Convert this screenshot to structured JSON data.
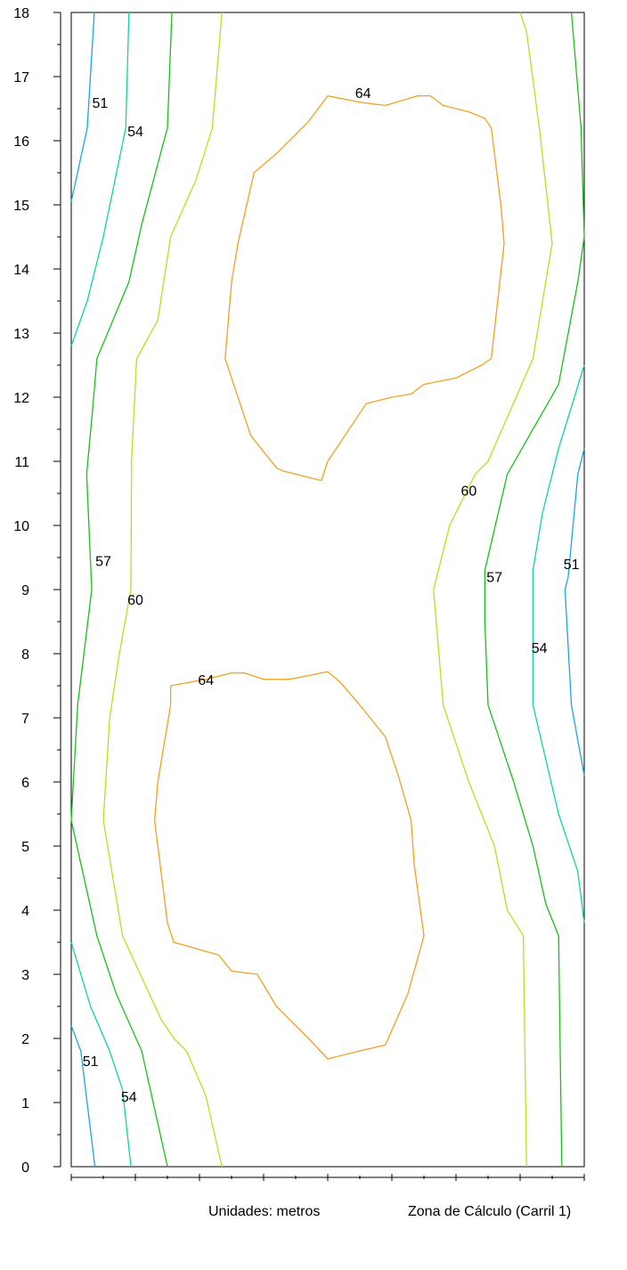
{
  "footer": {
    "units": "Unidades: metros",
    "zone": "Zona de Cálculo (Carril 1)"
  },
  "chart_data": {
    "type": "contour",
    "xlim": [
      0,
      8
    ],
    "ylim": [
      0,
      18
    ],
    "x_ticks": [
      0,
      1,
      2,
      3,
      4,
      5,
      6,
      7,
      8
    ],
    "y_ticks": [
      0,
      1,
      2,
      3,
      4,
      5,
      6,
      7,
      8,
      9,
      10,
      11,
      12,
      13,
      14,
      15,
      16,
      17,
      18
    ],
    "grid": false,
    "colors": {
      "51": "#1aa7e0",
      "54": "#10d2a4",
      "57": "#1bbf1b",
      "60": "#b9e01e",
      "64": "#f4a023"
    },
    "contours": [
      {
        "level": 51,
        "points": [
          [
            0.36,
            18
          ],
          [
            0.25,
            16.2
          ],
          [
            0,
            15.05
          ]
        ]
      },
      {
        "level": 51,
        "points": [
          [
            0,
            2.2
          ],
          [
            0.15,
            1.8
          ],
          [
            0.37,
            0
          ]
        ]
      },
      {
        "level": 51,
        "points": [
          [
            8,
            11.2
          ],
          [
            7.9,
            10.8
          ],
          [
            7.75,
            9.2
          ],
          [
            7.7,
            9.0
          ],
          [
            7.8,
            7.2
          ],
          [
            8,
            6.1
          ]
        ]
      },
      {
        "level": 54,
        "points": [
          [
            0.9,
            18
          ],
          [
            0.85,
            16.2
          ],
          [
            0.5,
            14.5
          ],
          [
            0.25,
            13.5
          ],
          [
            0,
            12.8
          ]
        ]
      },
      {
        "level": 54,
        "points": [
          [
            0,
            3.5
          ],
          [
            0.3,
            2.5
          ],
          [
            0.6,
            1.8
          ],
          [
            0.8,
            1.2
          ],
          [
            0.93,
            0
          ]
        ]
      },
      {
        "level": 54,
        "points": [
          [
            8,
            12.5
          ],
          [
            7.6,
            11.2
          ],
          [
            7.35,
            10.2
          ],
          [
            7.2,
            9.3
          ],
          [
            7.2,
            8.5
          ],
          [
            7.2,
            7.2
          ],
          [
            7.6,
            5.5
          ],
          [
            7.9,
            4.6
          ],
          [
            8,
            3.8
          ]
        ]
      },
      {
        "level": 57,
        "points": [
          [
            1.57,
            18
          ],
          [
            1.5,
            16.2
          ],
          [
            1.1,
            14.7
          ],
          [
            0.9,
            13.8
          ],
          [
            0.4,
            12.6
          ],
          [
            0.35,
            12.0
          ],
          [
            0.24,
            10.8
          ],
          [
            0.32,
            9.0
          ],
          [
            0.1,
            7.2
          ],
          [
            0,
            5.4
          ],
          [
            0.4,
            3.6
          ],
          [
            0.7,
            2.7
          ],
          [
            1.1,
            1.8
          ],
          [
            1.5,
            0
          ]
        ]
      },
      {
        "level": 57,
        "points": [
          [
            7.8,
            18
          ],
          [
            7.95,
            16.2
          ],
          [
            8,
            14.5
          ],
          [
            7.9,
            13.8
          ],
          [
            7.6,
            12.2
          ],
          [
            6.8,
            10.8
          ],
          [
            6.45,
            9.3
          ],
          [
            6.45,
            8.5
          ],
          [
            6.5,
            7.2
          ],
          [
            6.9,
            6.0
          ],
          [
            7.2,
            5.0
          ],
          [
            7.4,
            4.1
          ],
          [
            7.6,
            3.6
          ],
          [
            7.65,
            0
          ]
        ]
      },
      {
        "level": 60,
        "points": [
          [
            2.35,
            18
          ],
          [
            2.2,
            16.2
          ],
          [
            1.95,
            15.4
          ],
          [
            1.55,
            14.5
          ],
          [
            1.35,
            13.2
          ],
          [
            1.02,
            12.6
          ],
          [
            0.94,
            11.0
          ],
          [
            0.93,
            9.0
          ],
          [
            0.75,
            8.0
          ],
          [
            0.6,
            7.0
          ],
          [
            0.5,
            5.4
          ],
          [
            0.8,
            3.6
          ],
          [
            1.4,
            2.3
          ],
          [
            1.6,
            2.0
          ],
          [
            1.8,
            1.8
          ],
          [
            2.1,
            1.1
          ],
          [
            2.35,
            0
          ]
        ]
      },
      {
        "level": 60,
        "points": [
          [
            7.0,
            18
          ],
          [
            7.1,
            17.7
          ],
          [
            7.3,
            16.2
          ],
          [
            7.5,
            14.4
          ],
          [
            7.2,
            12.6
          ],
          [
            6.5,
            11.0
          ],
          [
            6.3,
            10.8
          ],
          [
            5.9,
            10.0
          ],
          [
            5.65,
            9.0
          ],
          [
            5.8,
            7.2
          ],
          [
            6.2,
            6.0
          ],
          [
            6.6,
            5.0
          ],
          [
            6.8,
            4.0
          ],
          [
            7.05,
            3.6
          ],
          [
            7.1,
            0
          ]
        ]
      },
      {
        "level": 64,
        "points": [
          [
            4.0,
            16.7
          ],
          [
            4.5,
            16.6
          ],
          [
            4.9,
            16.55
          ],
          [
            5.4,
            16.7
          ],
          [
            5.6,
            16.7
          ],
          [
            5.8,
            16.55
          ],
          [
            6.2,
            16.45
          ],
          [
            6.45,
            16.35
          ],
          [
            6.55,
            16.2
          ],
          [
            6.7,
            15.0
          ],
          [
            6.75,
            14.4
          ],
          [
            6.55,
            12.6
          ],
          [
            6.4,
            12.5
          ],
          [
            6.0,
            12.3
          ],
          [
            5.5,
            12.2
          ],
          [
            5.3,
            12.05
          ],
          [
            5.0,
            12.0
          ],
          [
            4.6,
            11.9
          ],
          [
            4.4,
            11.6
          ],
          [
            4.0,
            11.0
          ],
          [
            3.9,
            10.7
          ],
          [
            3.3,
            10.85
          ],
          [
            3.2,
            10.9
          ],
          [
            2.8,
            11.4
          ],
          [
            2.4,
            12.6
          ],
          [
            2.5,
            13.8
          ],
          [
            2.6,
            14.4
          ],
          [
            2.85,
            15.5
          ],
          [
            3.2,
            15.8
          ],
          [
            3.7,
            16.3
          ],
          [
            4.0,
            16.7
          ]
        ]
      },
      {
        "level": 64,
        "points": [
          [
            1.55,
            7.5
          ],
          [
            2.1,
            7.6
          ],
          [
            2.5,
            7.7
          ],
          [
            2.7,
            7.7
          ],
          [
            3.0,
            7.6
          ],
          [
            3.4,
            7.6
          ],
          [
            4.0,
            7.72
          ],
          [
            4.2,
            7.55
          ],
          [
            4.5,
            7.2
          ],
          [
            4.9,
            6.7
          ],
          [
            5.1,
            6.1
          ],
          [
            5.3,
            5.4
          ],
          [
            5.35,
            4.7
          ],
          [
            5.5,
            3.6
          ],
          [
            5.25,
            2.7
          ],
          [
            4.9,
            1.9
          ],
          [
            4.4,
            1.78
          ],
          [
            4.0,
            1.68
          ],
          [
            3.7,
            2.0
          ],
          [
            3.2,
            2.5
          ],
          [
            2.9,
            3.0
          ],
          [
            2.5,
            3.05
          ],
          [
            2.3,
            3.3
          ],
          [
            1.6,
            3.5
          ],
          [
            1.5,
            3.8
          ],
          [
            1.3,
            5.4
          ],
          [
            1.35,
            6.0
          ],
          [
            1.55,
            7.2
          ],
          [
            1.55,
            7.5
          ]
        ]
      }
    ],
    "labels": [
      {
        "text": "51",
        "x": 0.45,
        "y": 16.6,
        "level": 51
      },
      {
        "text": "54",
        "x": 1.0,
        "y": 16.15,
        "level": 54
      },
      {
        "text": "64",
        "x": 4.55,
        "y": 16.75,
        "level": 64
      },
      {
        "text": "60",
        "x": 6.2,
        "y": 10.55,
        "level": 60
      },
      {
        "text": "57",
        "x": 0.5,
        "y": 9.45,
        "level": 57
      },
      {
        "text": "60",
        "x": 1.0,
        "y": 8.85,
        "level": 60
      },
      {
        "text": "57",
        "x": 6.6,
        "y": 9.2,
        "level": 57
      },
      {
        "text": "51",
        "x": 7.8,
        "y": 9.4,
        "level": 51
      },
      {
        "text": "54",
        "x": 7.3,
        "y": 8.1,
        "level": 54
      },
      {
        "text": "64",
        "x": 2.1,
        "y": 7.6,
        "level": 64
      },
      {
        "text": "51",
        "x": 0.3,
        "y": 1.65,
        "level": 51
      },
      {
        "text": "54",
        "x": 0.9,
        "y": 1.1,
        "level": 54
      }
    ]
  }
}
